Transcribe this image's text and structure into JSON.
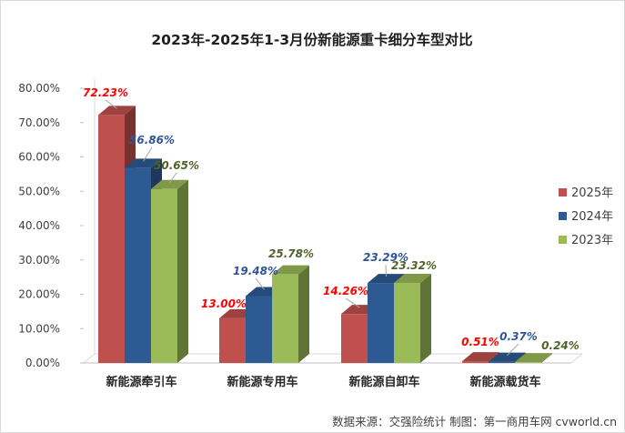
{
  "chart_data": {
    "type": "bar",
    "title": "2023年-2025年1-3月份新能源重卡细分车型对比",
    "categories": [
      "新能源牵引车",
      "新能源专用车",
      "新能源自卸车",
      "新能源载货车"
    ],
    "series": [
      {
        "name": "2025年",
        "color": "#c0504d",
        "values": [
          72.23,
          13.0,
          14.26,
          0.51
        ],
        "labels": [
          "72.23%",
          "13.00%",
          "14.26%",
          "0.51%"
        ],
        "label_color": "#ff0000"
      },
      {
        "name": "2024年",
        "color": "#2e5a94",
        "values": [
          56.86,
          19.48,
          23.29,
          0.37
        ],
        "labels": [
          "56.86%",
          "19.48%",
          "23.29%",
          "0.37%"
        ],
        "label_color": "#2f5597"
      },
      {
        "name": "2023年",
        "color": "#9bbb59",
        "values": [
          50.65,
          25.78,
          23.32,
          0.24
        ],
        "labels": [
          "50.65%",
          "25.78%",
          "23.32%",
          "0.24%"
        ],
        "label_color": "#4f6228"
      }
    ],
    "yticks": [
      "0.00%",
      "10.00%",
      "20.00%",
      "30.00%",
      "40.00%",
      "50.00%",
      "60.00%",
      "70.00%",
      "80.00%"
    ],
    "ylim": [
      0,
      80
    ],
    "grid": false,
    "legend_position": "right",
    "three_d": true
  },
  "source": "数据来源：交强险统计  制图：第一商用车网 cvworld.cn"
}
